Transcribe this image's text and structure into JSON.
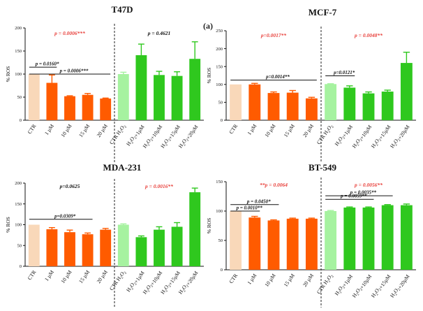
{
  "figure_label": "(a)",
  "colors": {
    "ctr_orange": "#f9d8b9",
    "orange": "#ff5b00",
    "ctr_green": "#a6f2a0",
    "green": "#2fc81e",
    "red_text": "#e8413c",
    "black_text": "#111111",
    "axis": "#111111",
    "error": "#444444"
  },
  "chart_data": [
    {
      "type": "bar",
      "title": "T47D",
      "ylabel": "% ROS",
      "ylim": [
        0,
        200
      ],
      "yticks": [
        "0",
        "50",
        "100",
        "150",
        "200"
      ],
      "categories": [
        "CTR",
        "1 µM",
        "10 µM",
        "15 µM",
        "20 µM",
        "CTR H2O2",
        "H2O2+1µM",
        "H2O2+10µM",
        "H2O2+15µM",
        "H2O2+20µM"
      ],
      "values": [
        100,
        81,
        52,
        55,
        47,
        100,
        141,
        98,
        96,
        133
      ],
      "errors": [
        0,
        17,
        1,
        3,
        1,
        4,
        24,
        8,
        9,
        37
      ],
      "group_sizes": [
        5,
        5
      ],
      "annotations": [
        {
          "text": "p = 0.0006***",
          "color": "red",
          "group": 0
        },
        {
          "text": "p = 0.4621",
          "color": "black",
          "group": 1
        }
      ],
      "brackets": [
        {
          "text": "p = 0.0160*",
          "from": 0,
          "to": 1,
          "y": 115
        },
        {
          "text": "p = 0.0006***",
          "from": 0,
          "to": 4,
          "y": 100
        }
      ]
    },
    {
      "type": "bar",
      "title": "MCF-7",
      "ylabel": "% ROS",
      "ylim": [
        0,
        250
      ],
      "yticks": [
        "0",
        "50",
        "100",
        "150",
        "200",
        "250"
      ],
      "categories": [
        "CTR",
        "1 µM",
        "10 µM",
        "15 µM",
        "20 µM",
        "CTR H2O2",
        "H2O2+1µM",
        "H2O2+10µM",
        "H2O2+15µM",
        "H2O2+20µM"
      ],
      "values": [
        100,
        100,
        76,
        77,
        61,
        101,
        91,
        75,
        80,
        160
      ],
      "errors": [
        0,
        3,
        3,
        6,
        3,
        1,
        5,
        4,
        4,
        30
      ],
      "group_sizes": [
        5,
        5
      ],
      "annotations": [
        {
          "text": "p=0.0017**",
          "color": "red",
          "group": 0
        },
        {
          "text": "p = 0.0048**",
          "color": "red",
          "group": 1
        }
      ],
      "brackets": [
        {
          "text": "p=0.0014**",
          "from": 0,
          "to": 4,
          "y": 112
        },
        {
          "text": "p=0.0121*",
          "from": 5,
          "to": 6,
          "y": 124
        }
      ]
    },
    {
      "type": "bar",
      "title": "MDA-231",
      "ylabel": "% ROS",
      "ylim": [
        0,
        200
      ],
      "yticks": [
        "0",
        "50",
        "100",
        "150",
        "200"
      ],
      "categories": [
        "CTR",
        "1 µM",
        "10 µM",
        "15 µM",
        "20 µM",
        "CTR H2O2",
        "H2O2+1µM",
        "H2O2+10µM",
        "H2O2+15µM",
        "H2O2+20µM"
      ],
      "values": [
        100,
        89,
        82,
        77,
        88,
        100,
        70,
        88,
        95,
        178
      ],
      "errors": [
        0,
        4,
        5,
        3,
        3,
        2,
        3,
        7,
        10,
        10
      ],
      "group_sizes": [
        5,
        5
      ],
      "annotations": [
        {
          "text": "p=0.0625",
          "color": "black",
          "group": 0
        },
        {
          "text": "p = 0.0016**",
          "color": "red",
          "group": 1
        }
      ],
      "brackets": [
        {
          "text": "p=0.0309*",
          "from": 0,
          "to": 3,
          "y": 113
        }
      ]
    },
    {
      "type": "bar",
      "title": "BT-549",
      "ylabel": "% ROS",
      "ylim": [
        0,
        150
      ],
      "yticks": [
        "0",
        "50",
        "100",
        "150"
      ],
      "categories": [
        "CTR",
        "1 µM",
        "10 µM",
        "15 µM",
        "20 µM",
        "CTR H2O2",
        "H2O2+1µM",
        "H2O2+10µM",
        "H2O2+15µM",
        "H2O2+20µM"
      ],
      "values": [
        100,
        89,
        84,
        87,
        87,
        100,
        106,
        106,
        110,
        110
      ],
      "errors": [
        0,
        2,
        1,
        1,
        1,
        1,
        1,
        1,
        1,
        2
      ],
      "group_sizes": [
        5,
        5
      ],
      "annotations": [
        {
          "text": "**p = 0.0064",
          "color": "red",
          "group": 0
        },
        {
          "text": "p = 0.0056**",
          "color": "red",
          "group": 1
        }
      ],
      "brackets": [
        {
          "text": "p = 0.0010**",
          "from": 0,
          "to": 1,
          "y": 100
        },
        {
          "text": "p = 0.0450*",
          "from": 0,
          "to": 2,
          "y": 111
        },
        {
          "text": "p = 0.0035**",
          "from": 5,
          "to": 8,
          "y": 126
        },
        {
          "text": "p = 0.0059**",
          "from": 5,
          "to": 7,
          "y": 120
        }
      ]
    }
  ]
}
